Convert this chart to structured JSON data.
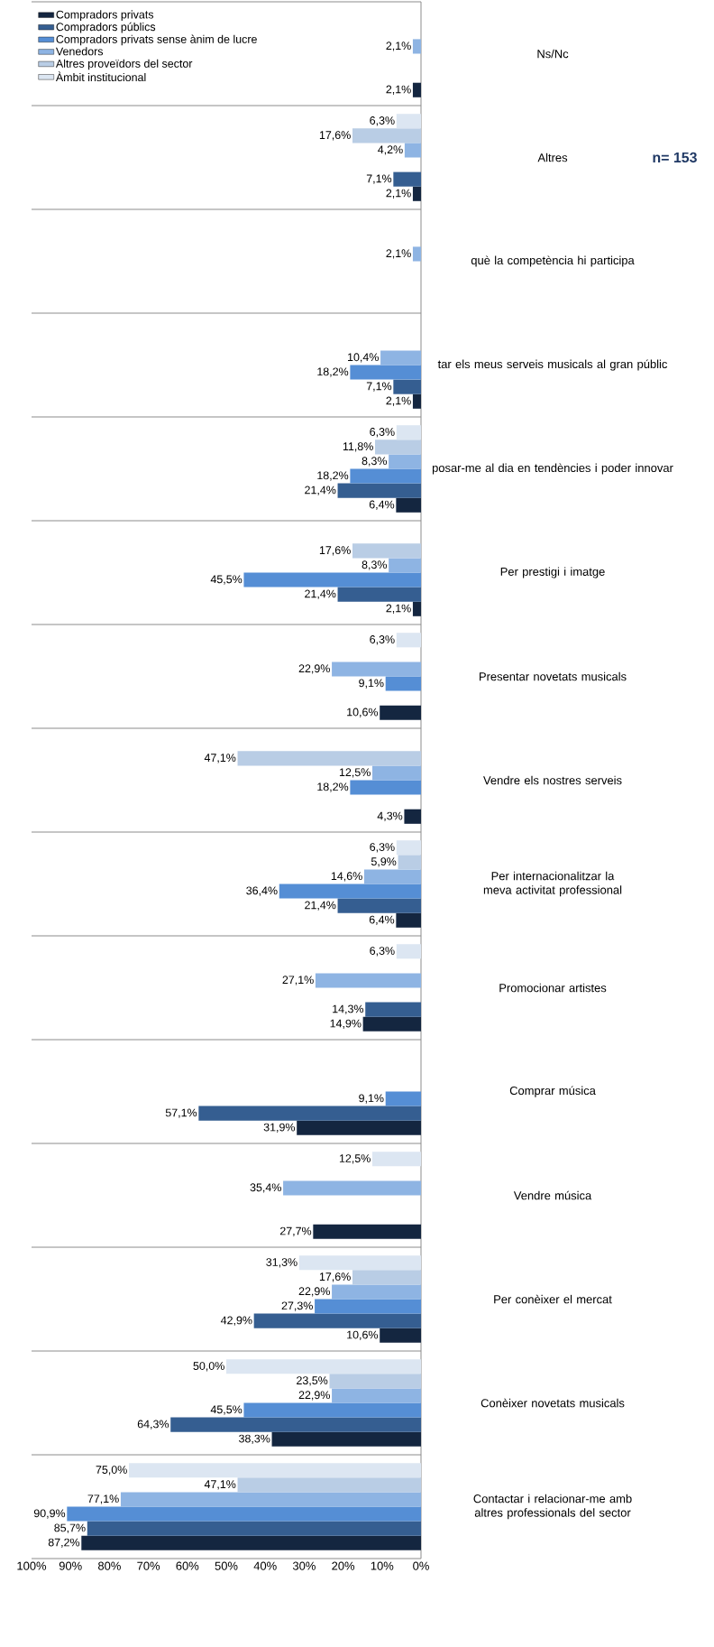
{
  "chart_data": {
    "type": "bar",
    "orientation": "horizontal",
    "categories": [
      "Ns/Nc",
      "Altres",
      "què la competència hi participa",
      "tar els meus serveis musicals al gran públic",
      "posar-me al dia en tendències i poder innovar",
      "Per prestigi i imatge",
      "Presentar novetats musicals",
      "Vendre els nostres serveis",
      "Per internacionalitzar la meva activitat professional",
      "Promocionar artistes",
      "Comprar música",
      "Vendre música",
      "Per conèixer el mercat",
      "Conèixer novetats musicals",
      "Contactar i relacionar-me amb altres professionals del sector"
    ],
    "series": [
      {
        "name": "Compradors privats",
        "color": "#142640",
        "values": [
          2.1,
          2.1,
          null,
          2.1,
          6.4,
          2.1,
          10.6,
          4.3,
          6.4,
          14.9,
          31.9,
          27.7,
          10.6,
          38.3,
          87.2
        ],
        "value_labels": [
          "2,1%",
          "2,1%",
          null,
          "2,1%",
          "6,4%",
          "2,1%",
          "10,6%",
          "4,3%",
          "6,4%",
          "14,9%",
          "31,9%",
          "27,7%",
          "10,6%",
          "38,3%",
          "87,2%"
        ]
      },
      {
        "name": "Compradors públics",
        "color": "#355e91",
        "values": [
          null,
          7.1,
          null,
          7.1,
          21.4,
          21.4,
          null,
          null,
          21.4,
          14.3,
          57.1,
          null,
          42.9,
          64.3,
          85.7
        ],
        "value_labels": [
          null,
          "7,1%",
          null,
          "7,1%",
          "21,4%",
          "21,4%",
          null,
          null,
          "21,4%",
          "14,3%",
          "57,1%",
          null,
          "42,9%",
          "64,3%",
          "85,7%"
        ]
      },
      {
        "name": "Compradors privats sense ànim de lucre",
        "color": "#558ed5",
        "values": [
          null,
          null,
          null,
          18.2,
          18.2,
          45.5,
          9.1,
          18.2,
          36.4,
          null,
          9.1,
          null,
          27.3,
          45.5,
          90.9
        ],
        "value_labels": [
          null,
          null,
          null,
          "18,2%",
          "18,2%",
          "45,5%",
          "9,1%",
          "18,2%",
          "36,4%",
          null,
          "9,1%",
          null,
          "27,3%",
          "45,5%",
          "90,9%"
        ]
      },
      {
        "name": "Venedors",
        "color": "#8eb4e3",
        "values": [
          2.1,
          4.2,
          2.1,
          10.4,
          8.3,
          8.3,
          22.9,
          12.5,
          14.6,
          27.1,
          null,
          35.4,
          22.9,
          22.9,
          77.1
        ],
        "value_labels": [
          "2,1%",
          "4,2%",
          "2,1%",
          "10,4%",
          "8,3%",
          "8,3%",
          "22,9%",
          "12,5%",
          "14,6%",
          "27,1%",
          null,
          "35,4%",
          "22,9%",
          "22,9%",
          "77,1%"
        ]
      },
      {
        "name": "Altres proveïdors del sector",
        "color": "#b9cde5",
        "values": [
          null,
          17.6,
          null,
          null,
          11.8,
          17.6,
          null,
          47.1,
          5.9,
          null,
          null,
          null,
          17.6,
          23.5,
          47.1
        ],
        "value_labels": [
          null,
          "17,6%",
          null,
          null,
          "11,8%",
          "17,6%",
          null,
          "47,1%",
          "5,9%",
          null,
          null,
          null,
          "17,6%",
          "23,5%",
          "47,1%"
        ]
      },
      {
        "name": "Àmbit institucional",
        "color": "#dce6f2",
        "values": [
          null,
          6.3,
          null,
          null,
          6.3,
          null,
          6.3,
          null,
          6.3,
          6.3,
          null,
          12.5,
          31.3,
          50.0,
          75.0
        ],
        "value_labels": [
          null,
          "6,3%",
          null,
          null,
          "6,3%",
          null,
          "6,3%",
          null,
          "6,3%",
          "6,3%",
          null,
          "12,5%",
          "31,3%",
          "50,0%",
          "75,0%"
        ]
      }
    ],
    "xlim": [
      100,
      0
    ],
    "xticks": [
      {
        "value": 0,
        "label": "0%"
      },
      {
        "value": 10,
        "label": "10%"
      },
      {
        "value": 20,
        "label": "20%"
      },
      {
        "value": 30,
        "label": "30%"
      },
      {
        "value": 40,
        "label": "40%"
      },
      {
        "value": 50,
        "label": "50%"
      },
      {
        "value": 60,
        "label": "60%"
      },
      {
        "value": 70,
        "label": "70%"
      },
      {
        "value": 80,
        "label": "80%"
      },
      {
        "value": 90,
        "label": "90%"
      },
      {
        "value": 100,
        "label": "100%"
      }
    ],
    "legend": "top left",
    "annotations": [
      "n= 153"
    ]
  }
}
